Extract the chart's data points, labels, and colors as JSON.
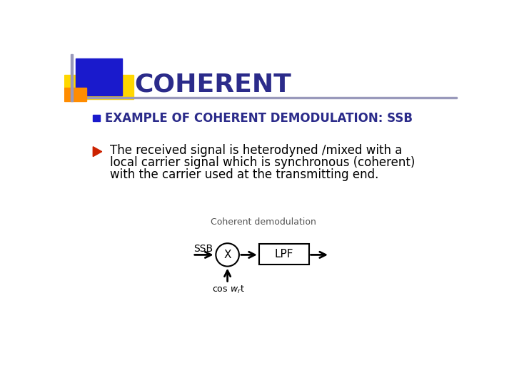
{
  "title": "COHERENT",
  "title_color": "#2b2b8a",
  "bg_color": "#ffffff",
  "bullet1": "EXAMPLE OF COHERENT DEMODULATION: SSB",
  "bullet1_color": "#2b2b8a",
  "arrow_bullet_color": "#cc2200",
  "body_text_line1": "The received signal is heterodyned /mixed with a",
  "body_text_line2": "local carrier signal which is synchronous (coherent)",
  "body_text_line3": "with the carrier used at the transmitting end.",
  "body_text_color": "#000000",
  "diagram_label": "Coherent demodulation",
  "diagram_label_color": "#555555",
  "ssb_label": "SSB",
  "multiplier_label": "X",
  "lpf_label": "LPF",
  "deco_yellow_color": "#ffd700",
  "deco_blue_color": "#1a1acc",
  "deco_orange_color": "#ff8c00",
  "deco_line_color": "#9999bb",
  "deco_purple_color": "#9999bb",
  "bullet_square_color": "#1a1acc"
}
